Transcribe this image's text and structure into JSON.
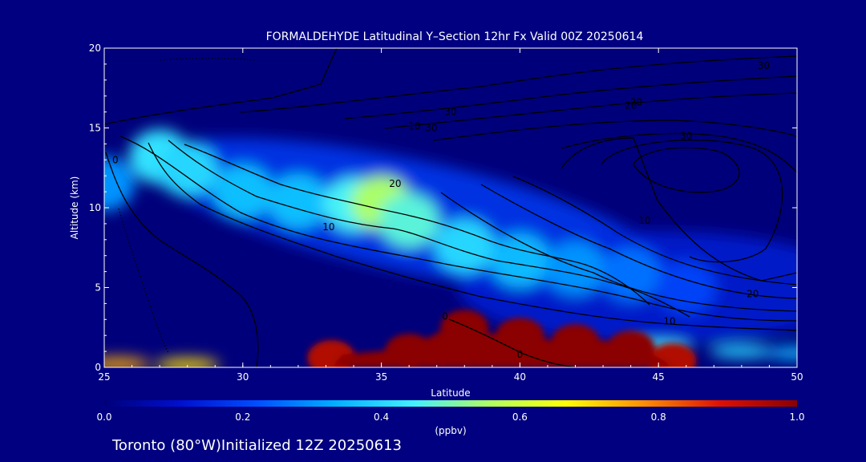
{
  "chart_data": {
    "type": "heatmap",
    "title": "FORMALDEHYDE Latitudinal Y–Section 12hr  Fx Valid 00Z 20250614",
    "xlabel": "Latitude",
    "ylabel": "Altitude (km)",
    "xlim": [
      25,
      50
    ],
    "ylim": [
      0,
      20
    ],
    "xticks": [
      "25",
      "30",
      "35",
      "40",
      "45",
      "50"
    ],
    "yticks": [
      "0",
      "5",
      "10",
      "15",
      "20"
    ],
    "colorbar": {
      "label": "(ppbv)",
      "range": [
        0.0,
        1.0
      ],
      "ticks": [
        "0.0",
        "0.2",
        "0.4",
        "0.6",
        "0.8",
        "1.0"
      ],
      "colors": [
        "#00007a",
        "#0010d0",
        "#0050ff",
        "#00b0ff",
        "#40f0ff",
        "#b0ff60",
        "#ffff00",
        "#ff9000",
        "#e01000",
        "#8b0000"
      ]
    },
    "field_features": [
      {
        "description": "elevated band",
        "points": [
          [
            25,
            11.5,
            0.3
          ],
          [
            27,
            13.2,
            0.42
          ],
          [
            28,
            12.4,
            0.4
          ],
          [
            30,
            11.0,
            0.36
          ],
          [
            32,
            10.4,
            0.36
          ],
          [
            34,
            10.2,
            0.45
          ],
          [
            35,
            10.3,
            0.55
          ],
          [
            36,
            9.2,
            0.47
          ],
          [
            38,
            7.6,
            0.4
          ],
          [
            40,
            6.7,
            0.35
          ],
          [
            42,
            6.2,
            0.3
          ],
          [
            44,
            5.8,
            0.26
          ],
          [
            46,
            5.0,
            0.2
          ]
        ]
      },
      {
        "description": "surface maximum",
        "points": [
          [
            33.2,
            0.6,
            0.95
          ],
          [
            36,
            1.0,
            1.0
          ],
          [
            38,
            2.5,
            1.0
          ],
          [
            40,
            2.0,
            1.0
          ],
          [
            42,
            1.6,
            1.0
          ],
          [
            44,
            1.2,
            1.0
          ],
          [
            45.5,
            0.4,
            0.95
          ]
        ]
      },
      {
        "description": "near-surface layer",
        "points": [
          [
            25.5,
            0.2,
            0.75
          ],
          [
            28,
            0.15,
            0.7
          ],
          [
            45,
            1.2,
            0.45
          ],
          [
            48,
            1.0,
            0.4
          ],
          [
            50,
            0.9,
            0.35
          ]
        ]
      }
    ],
    "contour_labels": [
      "0",
      "10",
      "20",
      "30",
      "30",
      "20",
      "10",
      "10",
      "20",
      "30",
      "0",
      "0",
      "10",
      "20",
      "30"
    ]
  },
  "footer": {
    "text": "Toronto (80°W)Initialized 12Z 20250613"
  }
}
